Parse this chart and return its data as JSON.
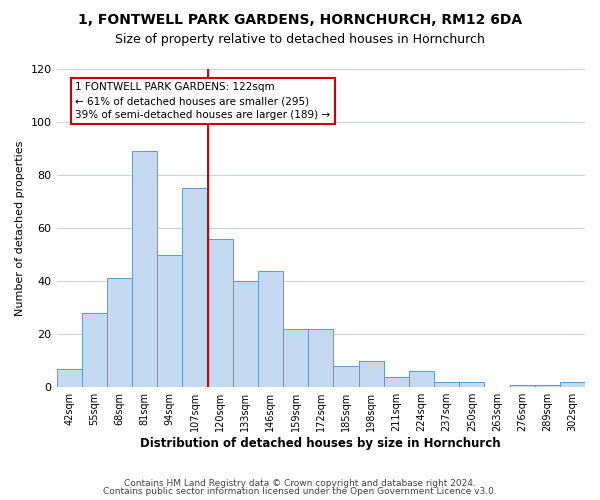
{
  "title": "1, FONTWELL PARK GARDENS, HORNCHURCH, RM12 6DA",
  "subtitle": "Size of property relative to detached houses in Hornchurch",
  "xlabel": "Distribution of detached houses by size in Hornchurch",
  "ylabel": "Number of detached properties",
  "bar_values": [
    7,
    28,
    41,
    89,
    50,
    75,
    56,
    40,
    44,
    22,
    22,
    8,
    10,
    4,
    6,
    2,
    2,
    0,
    1,
    1,
    2
  ],
  "bar_labels": [
    "42sqm",
    "55sqm",
    "68sqm",
    "81sqm",
    "94sqm",
    "107sqm",
    "120sqm",
    "133sqm",
    "146sqm",
    "159sqm",
    "172sqm",
    "185sqm",
    "198sqm",
    "211sqm",
    "224sqm",
    "237sqm",
    "250sqm",
    "263sqm",
    "276sqm",
    "289sqm",
    "302sqm"
  ],
  "bar_color": "#c5d9f0",
  "bar_edge_color": "#5b9bd5",
  "vline_x": 5.5,
  "vline_color": "#cc0000",
  "annotation_line1": "1 FONTWELL PARK GARDENS: 122sqm",
  "annotation_line2": "← 61% of detached houses are smaller (295)",
  "annotation_line3": "39% of semi-detached houses are larger (189) →",
  "annotation_box_edgecolor": "#cc0000",
  "ylim": [
    0,
    120
  ],
  "yticks": [
    0,
    20,
    40,
    60,
    80,
    100,
    120
  ],
  "footer1": "Contains HM Land Registry data © Crown copyright and database right 2024.",
  "footer2": "Contains public sector information licensed under the Open Government Licence v3.0.",
  "background_color": "#ffffff",
  "grid_color": "#c8d4e4",
  "title_fontsize": 10,
  "subtitle_fontsize": 9,
  "ylabel_fontsize": 8,
  "xlabel_fontsize": 8.5,
  "tick_fontsize": 7,
  "annotation_fontsize": 7.5,
  "footer_fontsize": 6.5
}
